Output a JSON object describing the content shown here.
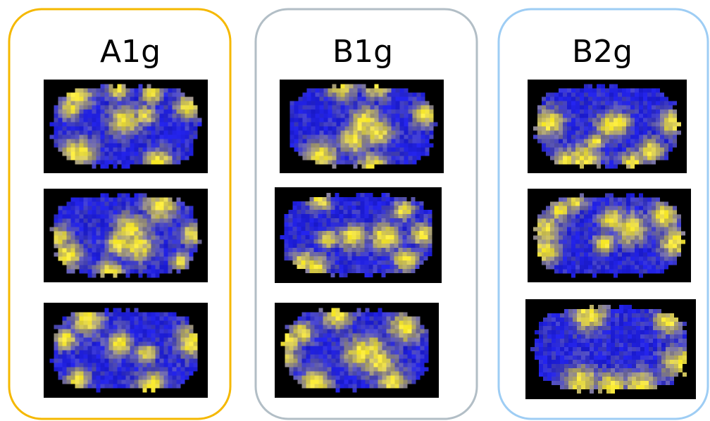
{
  "panels": [
    {
      "title": "A1g"
    },
    {
      "title": "B1g"
    },
    {
      "title": "B2g"
    }
  ]
}
